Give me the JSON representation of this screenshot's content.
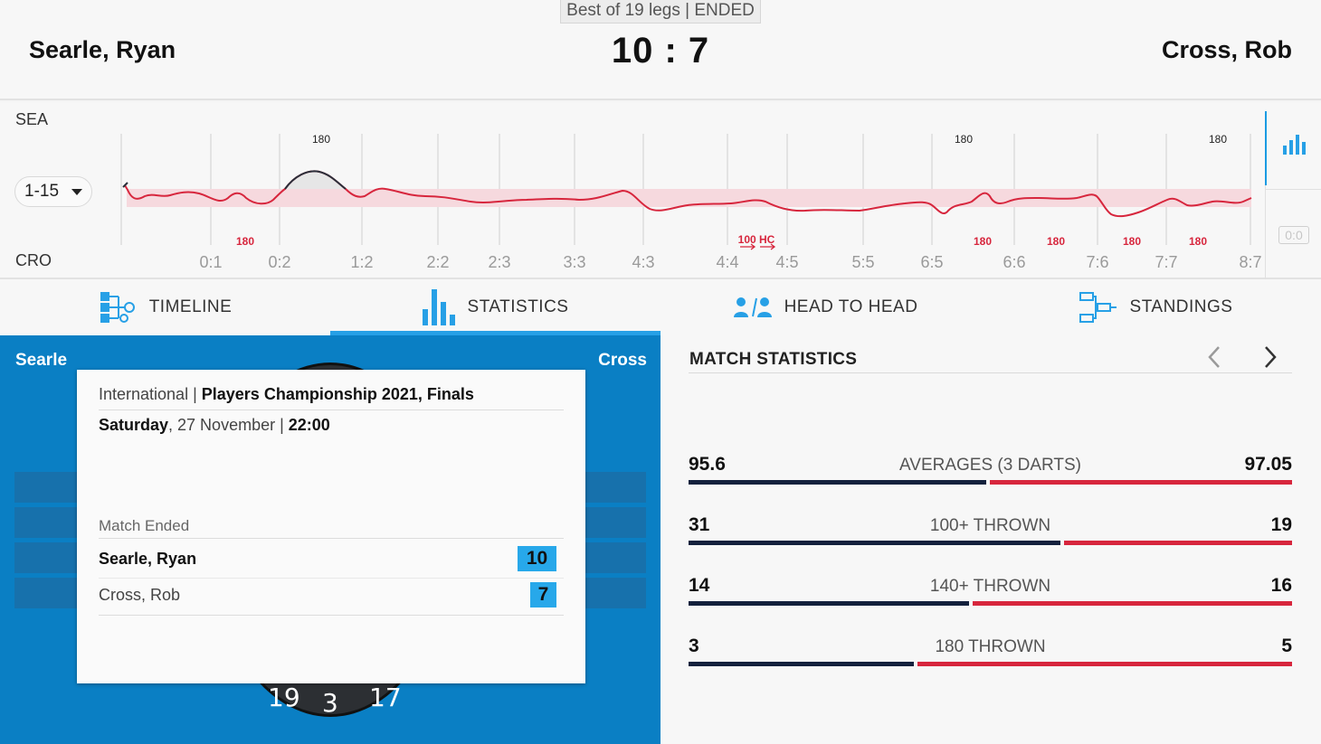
{
  "header": {
    "format": "Best of 19 legs | ENDED",
    "player_home": "Searle, Ryan",
    "player_away": "Cross, Rob",
    "score_home": "10",
    "score_away": "7"
  },
  "timeline": {
    "label_home": "SEA",
    "label_away": "CRO",
    "range": "1-15",
    "leg_labels": [
      "0:1",
      "0:2",
      "1:2",
      "2:2",
      "2:3",
      "3:3",
      "4:3",
      "4:4",
      "4:5",
      "5:5",
      "6:5",
      "6:6",
      "7:6",
      "7:7",
      "8:7"
    ],
    "home_180_label": "180",
    "away_180_label": "180",
    "hc_label": "100 HC",
    "side_score": "0:0"
  },
  "tabs": [
    {
      "label": "TIMELINE",
      "icon": "timeline-icon"
    },
    {
      "label": "STATISTICS",
      "icon": "bar-chart-icon"
    },
    {
      "label": "HEAD TO HEAD",
      "icon": "players-icon"
    },
    {
      "label": "STANDINGS",
      "icon": "bracket-icon"
    }
  ],
  "board": {
    "home_short": "Searle",
    "away_short": "Cross",
    "numbers": [
      "19",
      "3",
      "17"
    ]
  },
  "card": {
    "category": "International",
    "separator": " | ",
    "tournament": "Players Championship 2021, Finals",
    "day": "Saturday",
    "date": ", 27 November | ",
    "time": "22:00",
    "status": "Match Ended",
    "home_name": "Searle, Ryan",
    "away_name": "Cross, Rob",
    "home_score": "10",
    "away_score": "7"
  },
  "match_statistics": {
    "title": "MATCH STATISTICS",
    "colors": {
      "home": "#14213d",
      "away": "#d7263d"
    },
    "rows": [
      {
        "label": "AVERAGES (3 DARTS)",
        "home": "95.6",
        "away": "97.05",
        "home_share": 0.496
      },
      {
        "label": "100+ THROWN",
        "home": "31",
        "away": "19",
        "home_share": 0.62
      },
      {
        "label": "140+ THROWN",
        "home": "14",
        "away": "16",
        "home_share": 0.467
      },
      {
        "label": "180 THROWN",
        "home": "3",
        "away": "5",
        "home_share": 0.375
      }
    ]
  }
}
